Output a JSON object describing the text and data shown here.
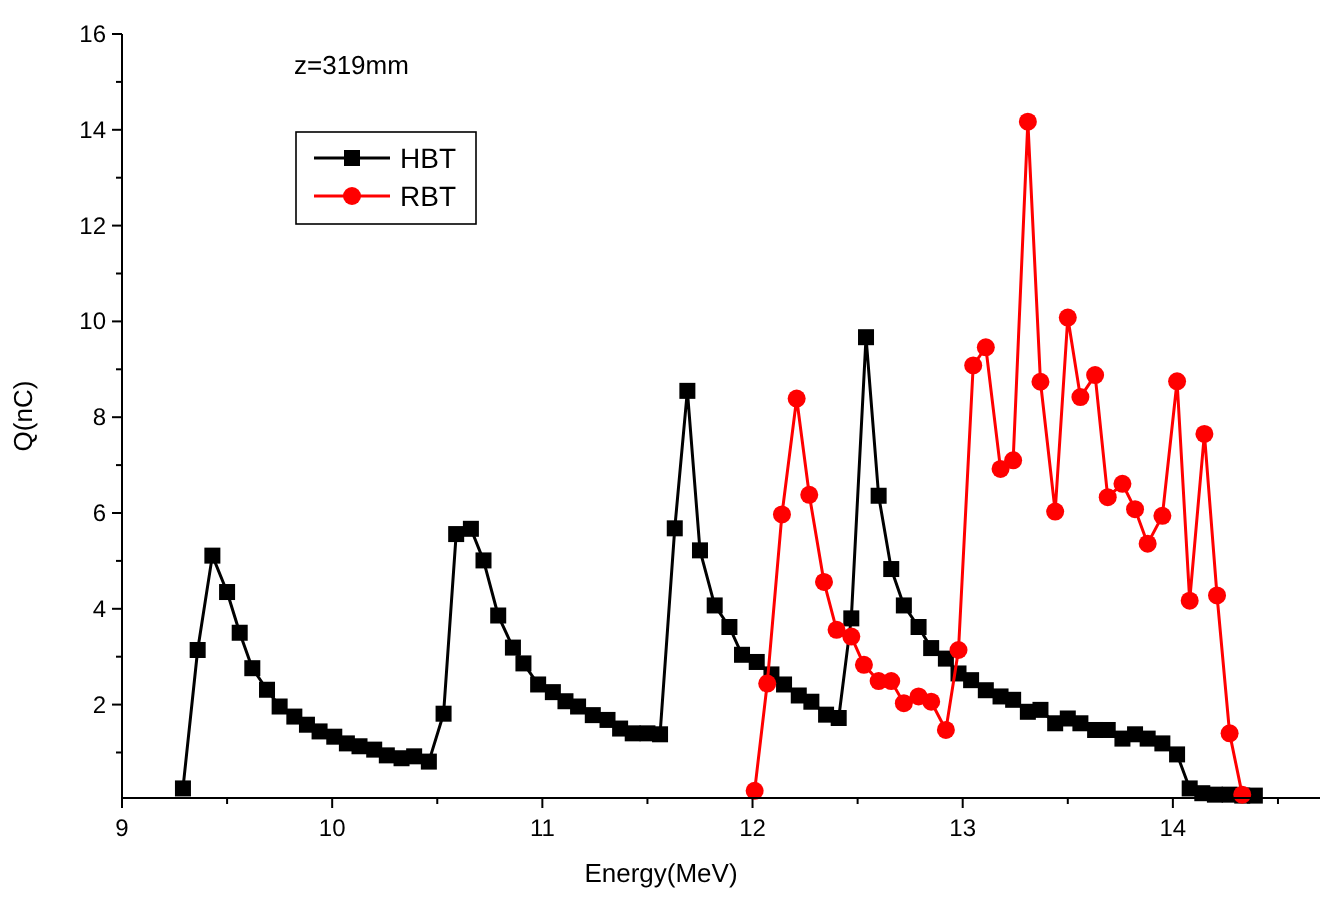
{
  "chart_data": {
    "type": "line",
    "xlabel": "Energy(MeV)",
    "ylabel": "Q(nC)",
    "annotations": [
      "z=319mm"
    ],
    "xlim": [
      9,
      14.7
    ],
    "ylim": [
      0.05,
      16
    ],
    "xticks": [
      9,
      {
        "value": 9.5,
        "label": null
      },
      10,
      {
        "value": 10.5,
        "label": null
      },
      11,
      {
        "value": 11.5,
        "label": null
      },
      12,
      {
        "value": 12.5,
        "label": null
      },
      13,
      {
        "value": 13.5,
        "label": null
      },
      14,
      {
        "value": 14.5,
        "label": null
      }
    ],
    "yticks": [
      {
        "value": 1,
        "label": null
      },
      2,
      {
        "value": 3,
        "label": null
      },
      4,
      {
        "value": 5,
        "label": null
      },
      6,
      {
        "value": 7,
        "label": null
      },
      8,
      {
        "value": 9,
        "label": null
      },
      10,
      {
        "value": 11,
        "label": null
      },
      12,
      {
        "value": 13,
        "label": null
      },
      14,
      {
        "value": 15,
        "label": null
      },
      16
    ],
    "grid": false,
    "legend": "top left",
    "series": [
      {
        "name": "HBT",
        "color": "#000000",
        "marker": "square",
        "x": [
          9.29,
          9.36,
          9.43,
          9.5,
          9.56,
          9.62,
          9.69,
          9.75,
          9.82,
          9.88,
          9.94,
          10.01,
          10.07,
          10.13,
          10.2,
          10.26,
          10.33,
          10.39,
          10.46,
          10.53,
          10.59,
          10.66,
          10.72,
          10.79,
          10.86,
          10.91,
          10.98,
          11.05,
          11.11,
          11.17,
          11.24,
          11.31,
          11.37,
          11.43,
          11.5,
          11.56,
          11.63,
          11.69,
          11.75,
          11.82,
          11.89,
          11.95,
          12.02,
          12.09,
          12.15,
          12.22,
          12.28,
          12.35,
          12.41,
          12.47,
          12.54,
          12.6,
          12.66,
          12.72,
          12.79,
          12.85,
          12.92,
          12.98,
          13.04,
          13.11,
          13.18,
          13.24,
          13.31,
          13.37,
          13.44,
          13.5,
          13.56,
          13.63,
          13.69,
          13.76,
          13.82,
          13.88,
          13.95,
          14.02,
          14.08,
          14.14,
          14.2,
          14.27,
          14.33,
          14.39
        ],
        "values": [
          0.25,
          3.14,
          5.11,
          4.35,
          3.5,
          2.76,
          2.31,
          1.96,
          1.75,
          1.58,
          1.44,
          1.33,
          1.19,
          1.13,
          1.06,
          0.94,
          0.88,
          0.92,
          0.81,
          1.81,
          5.56,
          5.67,
          5.01,
          3.86,
          3.19,
          2.86,
          2.42,
          2.26,
          2.07,
          1.96,
          1.78,
          1.68,
          1.5,
          1.4,
          1.4,
          1.38,
          5.68,
          8.55,
          5.22,
          4.07,
          3.62,
          3.04,
          2.89,
          2.63,
          2.42,
          2.19,
          2.06,
          1.79,
          1.72,
          3.8,
          9.67,
          6.36,
          4.83,
          4.07,
          3.62,
          3.18,
          2.96,
          2.65,
          2.51,
          2.3,
          2.17,
          2.1,
          1.85,
          1.89,
          1.61,
          1.71,
          1.61,
          1.47,
          1.47,
          1.29,
          1.38,
          1.29,
          1.19,
          0.96,
          0.25,
          0.15,
          0.12,
          0.12,
          0.1,
          0.1
        ]
      },
      {
        "name": "RBT",
        "color": "#ff0000",
        "marker": "circle",
        "x": [
          12.01,
          12.07,
          12.14,
          12.21,
          12.27,
          12.34,
          12.4,
          12.47,
          12.53,
          12.6,
          12.66,
          12.72,
          12.79,
          12.85,
          12.92,
          12.98,
          13.05,
          13.11,
          13.18,
          13.24,
          13.31,
          13.37,
          13.44,
          13.5,
          13.56,
          13.63,
          13.69,
          13.76,
          13.82,
          13.88,
          13.95,
          14.02,
          14.08,
          14.15,
          14.21,
          14.27,
          14.33
        ],
        "values": [
          0.2,
          2.44,
          5.97,
          8.39,
          6.38,
          4.56,
          3.56,
          3.42,
          2.83,
          2.49,
          2.49,
          2.03,
          2.17,
          2.06,
          1.47,
          3.14,
          9.08,
          9.46,
          6.92,
          7.1,
          14.17,
          8.74,
          6.03,
          10.08,
          8.42,
          8.88,
          6.33,
          6.61,
          6.08,
          5.36,
          5.94,
          8.75,
          4.17,
          7.65,
          4.28,
          1.4,
          0.12
        ]
      }
    ]
  }
}
